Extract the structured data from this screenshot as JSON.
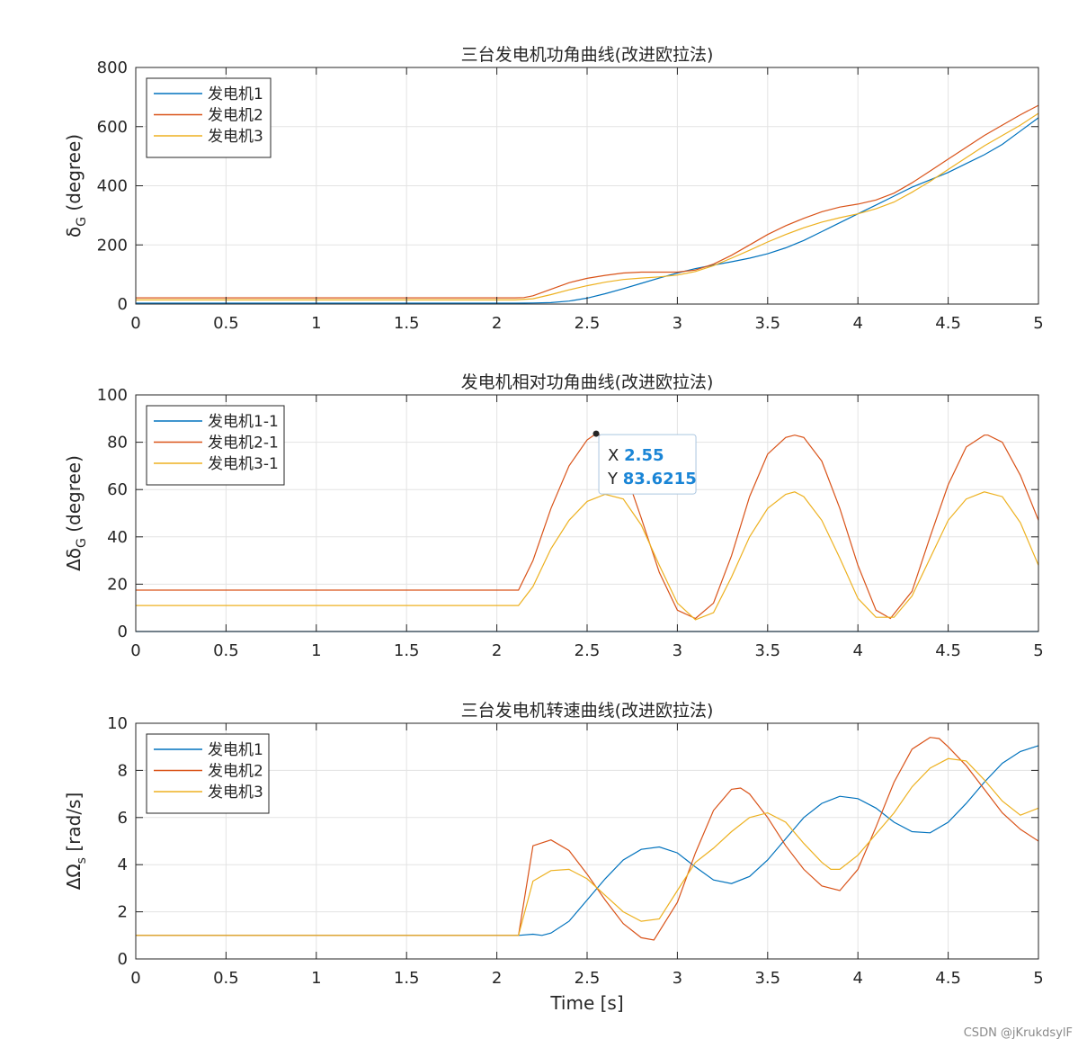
{
  "watermark": "CSDN @jKrukdsylF",
  "chart_data": [
    {
      "type": "line",
      "title": "三台发电机功角曲线(改进欧拉法)",
      "xlabel": "",
      "ylabel_parts": [
        "δ",
        "G",
        " (degree)"
      ],
      "xlim": [
        0,
        5
      ],
      "ylim": [
        0,
        800
      ],
      "xticks": [
        "0",
        "0.5",
        "1",
        "1.5",
        "2",
        "2.5",
        "3",
        "3.5",
        "4",
        "4.5",
        "5"
      ],
      "yticks": [
        "0",
        "200",
        "400",
        "600",
        "800"
      ],
      "xtick_values": [
        0,
        0.5,
        1,
        1.5,
        2,
        2.5,
        3,
        3.5,
        4,
        4.5,
        5
      ],
      "ytick_values": [
        0,
        200,
        400,
        600,
        800
      ],
      "grid": true,
      "legend_position": "top-left",
      "series": [
        {
          "name": "发电机1",
          "color": "#0072BD",
          "x": [
            0,
            2.1,
            2.2,
            2.3,
            2.4,
            2.5,
            2.6,
            2.7,
            2.8,
            2.9,
            3.0,
            3.1,
            3.2,
            3.3,
            3.4,
            3.5,
            3.6,
            3.7,
            3.8,
            3.9,
            4.0,
            4.1,
            4.2,
            4.3,
            4.4,
            4.5,
            4.6,
            4.7,
            4.8,
            4.9,
            5.0
          ],
          "y": [
            3,
            3,
            3.5,
            5,
            10,
            20,
            35,
            52,
            70,
            88,
            105,
            120,
            132,
            143,
            155,
            170,
            190,
            215,
            245,
            275,
            305,
            335,
            365,
            395,
            420,
            445,
            475,
            505,
            540,
            585,
            630
          ]
        },
        {
          "name": "发电机2",
          "color": "#D95319",
          "x": [
            0,
            2.1,
            2.15,
            2.2,
            2.3,
            2.4,
            2.5,
            2.6,
            2.7,
            2.8,
            2.9,
            3.0,
            3.1,
            3.2,
            3.3,
            3.4,
            3.5,
            3.6,
            3.7,
            3.8,
            3.9,
            4.0,
            4.1,
            4.2,
            4.3,
            4.4,
            4.5,
            4.6,
            4.7,
            4.8,
            4.9,
            5.0
          ],
          "y": [
            21,
            21,
            22,
            28,
            50,
            72,
            87,
            97,
            105,
            108,
            108,
            108,
            115,
            135,
            165,
            200,
            235,
            265,
            290,
            312,
            328,
            338,
            352,
            375,
            410,
            450,
            490,
            530,
            570,
            605,
            640,
            672
          ]
        },
        {
          "name": "发电机3",
          "color": "#EDB120",
          "x": [
            0,
            2.1,
            2.2,
            2.3,
            2.4,
            2.5,
            2.6,
            2.7,
            2.8,
            2.9,
            3.0,
            3.1,
            3.2,
            3.3,
            3.4,
            3.5,
            3.6,
            3.7,
            3.8,
            3.9,
            4.0,
            4.1,
            4.2,
            4.3,
            4.4,
            4.5,
            4.6,
            4.7,
            4.8,
            4.9,
            5.0
          ],
          "y": [
            14,
            14,
            18,
            32,
            48,
            62,
            74,
            83,
            88,
            92,
            98,
            110,
            130,
            155,
            182,
            210,
            235,
            258,
            277,
            292,
            305,
            322,
            345,
            378,
            415,
            455,
            495,
            535,
            570,
            605,
            645
          ]
        }
      ]
    },
    {
      "type": "line",
      "title": "发电机相对功角曲线(改进欧拉法)",
      "xlabel": "",
      "ylabel_parts": [
        "Δδ",
        "G",
        " (degree)"
      ],
      "xlim": [
        0,
        5
      ],
      "ylim": [
        0,
        100
      ],
      "xticks": [
        "0",
        "0.5",
        "1",
        "1.5",
        "2",
        "2.5",
        "3",
        "3.5",
        "4",
        "4.5",
        "5"
      ],
      "yticks": [
        "0",
        "20",
        "40",
        "60",
        "80",
        "100"
      ],
      "xtick_values": [
        0,
        0.5,
        1,
        1.5,
        2,
        2.5,
        3,
        3.5,
        4,
        4.5,
        5
      ],
      "ytick_values": [
        0,
        20,
        40,
        60,
        80,
        100
      ],
      "grid": true,
      "legend_position": "top-left",
      "datatip": {
        "x_label": "X",
        "x_value": "2.55",
        "y_label": "Y",
        "y_value": "83.6215",
        "x": 2.55,
        "y": 83.6215
      },
      "series": [
        {
          "name": "发电机1-1",
          "color": "#0072BD",
          "x": [
            0,
            5
          ],
          "y": [
            0,
            0
          ]
        },
        {
          "name": "发电机2-1",
          "color": "#D95319",
          "x": [
            0,
            2.12,
            2.2,
            2.3,
            2.4,
            2.5,
            2.55,
            2.6,
            2.7,
            2.8,
            2.9,
            3.0,
            3.1,
            3.2,
            3.3,
            3.4,
            3.5,
            3.6,
            3.65,
            3.7,
            3.8,
            3.9,
            4.0,
            4.1,
            4.18,
            4.3,
            4.4,
            4.5,
            4.6,
            4.7,
            4.72,
            4.8,
            4.9,
            5.0
          ],
          "y": [
            17.5,
            17.5,
            30,
            52,
            70,
            81,
            83.6,
            82,
            70,
            48,
            25,
            9,
            5.5,
            12,
            32,
            57,
            75,
            82,
            83,
            82,
            72,
            52,
            28,
            9,
            5.5,
            17,
            40,
            62,
            78,
            83,
            83,
            80,
            66,
            47
          ]
        },
        {
          "name": "发电机3-1",
          "color": "#EDB120",
          "x": [
            0,
            2.12,
            2.2,
            2.3,
            2.4,
            2.5,
            2.6,
            2.7,
            2.8,
            2.9,
            3.0,
            3.1,
            3.2,
            3.3,
            3.4,
            3.5,
            3.6,
            3.65,
            3.7,
            3.8,
            3.9,
            4.0,
            4.1,
            4.2,
            4.3,
            4.4,
            4.5,
            4.6,
            4.7,
            4.8,
            4.9,
            5.0
          ],
          "y": [
            11,
            11,
            19,
            35,
            47,
            55,
            58,
            56,
            45,
            28,
            12,
            5,
            8,
            23,
            40,
            52,
            58,
            59,
            57,
            47,
            31,
            14,
            6,
            6,
            15,
            31,
            47,
            56,
            59,
            57,
            46,
            28
          ]
        }
      ]
    },
    {
      "type": "line",
      "title": "三台发电机转速曲线(改进欧拉法)",
      "xlabel": "Time [s]",
      "ylabel_parts": [
        "ΔΩ",
        "s",
        " [rad/s]"
      ],
      "xlim": [
        0,
        5
      ],
      "ylim": [
        0,
        10
      ],
      "xticks": [
        "0",
        "0.5",
        "1",
        "1.5",
        "2",
        "2.5",
        "3",
        "3.5",
        "4",
        "4.5",
        "5"
      ],
      "yticks": [
        "0",
        "2",
        "4",
        "6",
        "8",
        "10"
      ],
      "xtick_values": [
        0,
        0.5,
        1,
        1.5,
        2,
        2.5,
        3,
        3.5,
        4,
        4.5,
        5
      ],
      "ytick_values": [
        0,
        2,
        4,
        6,
        8,
        10
      ],
      "grid": true,
      "legend_position": "top-left",
      "series": [
        {
          "name": "发电机1",
          "color": "#0072BD",
          "x": [
            0,
            2.12,
            2.2,
            2.25,
            2.3,
            2.4,
            2.5,
            2.6,
            2.7,
            2.8,
            2.9,
            3.0,
            3.1,
            3.2,
            3.3,
            3.4,
            3.5,
            3.6,
            3.7,
            3.8,
            3.9,
            4.0,
            4.1,
            4.2,
            4.3,
            4.4,
            4.5,
            4.6,
            4.7,
            4.8,
            4.9,
            5.0
          ],
          "y": [
            1,
            1,
            1.05,
            1,
            1.1,
            1.6,
            2.5,
            3.4,
            4.2,
            4.65,
            4.75,
            4.5,
            3.9,
            3.35,
            3.2,
            3.5,
            4.2,
            5.1,
            6.0,
            6.6,
            6.9,
            6.8,
            6.4,
            5.8,
            5.4,
            5.35,
            5.8,
            6.6,
            7.5,
            8.3,
            8.8,
            9.05
          ]
        },
        {
          "name": "发电机2",
          "color": "#D95319",
          "x": [
            0,
            2.12,
            2.2,
            2.3,
            2.4,
            2.5,
            2.6,
            2.7,
            2.8,
            2.87,
            3.0,
            3.1,
            3.2,
            3.3,
            3.35,
            3.4,
            3.5,
            3.6,
            3.7,
            3.8,
            3.9,
            4.0,
            4.1,
            4.2,
            4.3,
            4.4,
            4.45,
            4.5,
            4.6,
            4.7,
            4.8,
            4.9,
            5.0
          ],
          "y": [
            1,
            1,
            4.8,
            5.05,
            4.6,
            3.6,
            2.5,
            1.5,
            0.9,
            0.8,
            2.4,
            4.5,
            6.3,
            7.2,
            7.25,
            7.0,
            6.0,
            4.8,
            3.8,
            3.1,
            2.9,
            3.8,
            5.6,
            7.5,
            8.9,
            9.4,
            9.35,
            9.0,
            8.2,
            7.2,
            6.2,
            5.5,
            5.0
          ]
        },
        {
          "name": "发电机3",
          "color": "#EDB120",
          "x": [
            0,
            2.12,
            2.2,
            2.3,
            2.4,
            2.5,
            2.6,
            2.7,
            2.8,
            2.9,
            3.0,
            3.1,
            3.2,
            3.3,
            3.4,
            3.5,
            3.6,
            3.7,
            3.8,
            3.85,
            3.9,
            4.0,
            4.1,
            4.2,
            4.3,
            4.4,
            4.5,
            4.6,
            4.7,
            4.8,
            4.9,
            5.0
          ],
          "y": [
            1,
            1,
            3.3,
            3.75,
            3.8,
            3.4,
            2.7,
            2.0,
            1.6,
            1.7,
            2.9,
            4.1,
            4.7,
            5.4,
            6.0,
            6.2,
            5.8,
            4.9,
            4.1,
            3.8,
            3.8,
            4.4,
            5.3,
            6.2,
            7.3,
            8.1,
            8.5,
            8.4,
            7.6,
            6.7,
            6.1,
            6.4
          ]
        }
      ]
    }
  ]
}
